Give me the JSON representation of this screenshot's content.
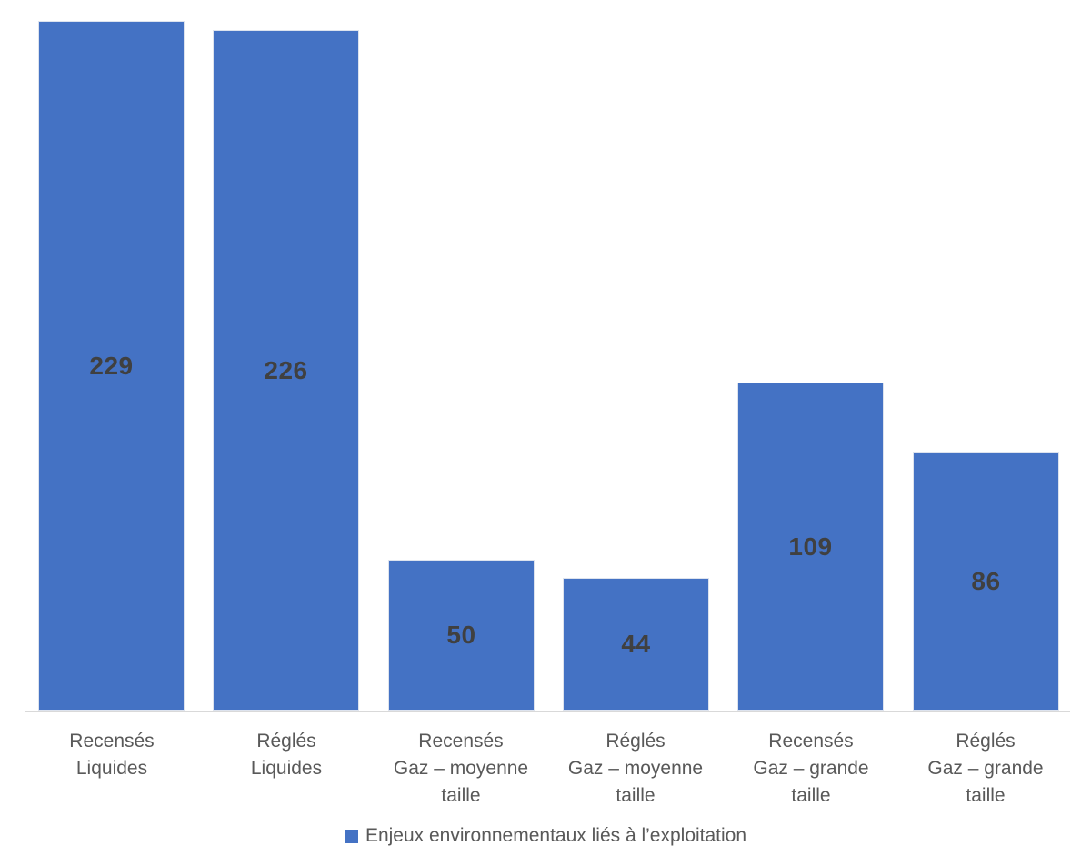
{
  "chart_data": {
    "type": "bar",
    "title": "",
    "xlabel": "",
    "ylabel": "",
    "categories": [
      "Recensés\nLiquides",
      "Réglés\nLiquides",
      "Recensés\nGaz – moyenne\ntaille",
      "Réglés\nGaz – moyenne\ntaille",
      "Recensés\nGaz – grande\ntaille",
      "Réglés\nGaz – grande\ntaille"
    ],
    "series": [
      {
        "name": "Enjeux environnementaux liés à l’exploitation",
        "values": [
          229,
          226,
          50,
          44,
          109,
          86
        ]
      }
    ],
    "values": [
      229,
      226,
      50,
      44,
      109,
      86
    ],
    "data_labels": {
      "visible": true,
      "position": "center",
      "color": "#404040"
    },
    "legend": {
      "position": "bottom",
      "label": "Enjeux environnementaux liés à l’exploitation",
      "marker_color": "#4472C4",
      "text_color": "#595959"
    },
    "colors": {
      "bar_fill": "#4472C4",
      "axis_line": "#D9D9D9",
      "category_text": "#595959",
      "background": "#FFFFFF"
    },
    "ylim": [
      0,
      236
    ],
    "grid": false,
    "y_axis_visible": false
  }
}
